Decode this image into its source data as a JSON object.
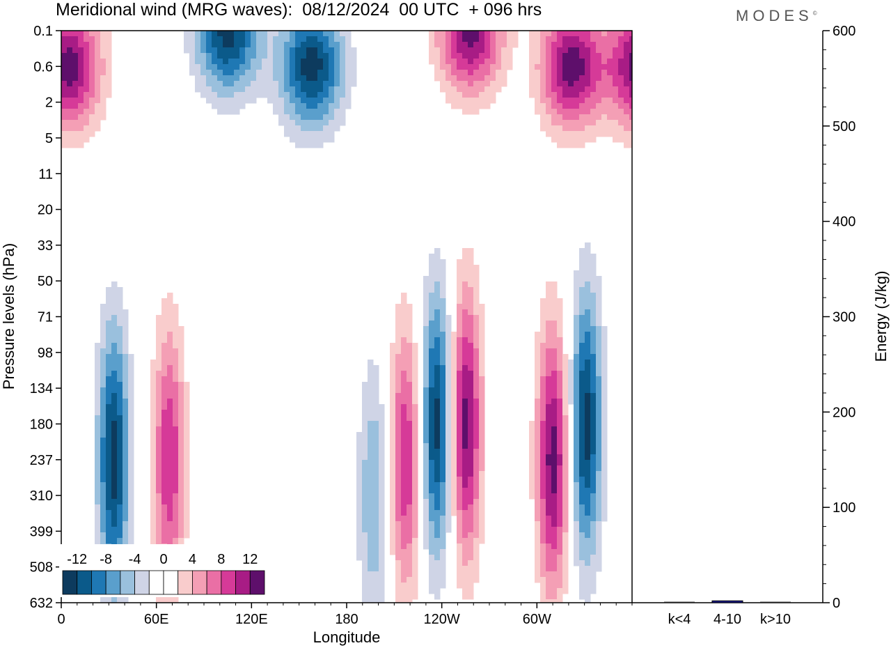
{
  "title": "Meridional wind (MRG waves):  08/12/2024  00 UTC  + 096 hrs",
  "logo": "MODES",
  "logo_mark": "©",
  "chart_data": [
    {
      "type": "heatmap",
      "title": "Meridional wind (MRG waves):  08/12/2024  00 UTC  + 096 hrs",
      "xlabel": "Longitude",
      "ylabel": "Pressure levels (hPa)",
      "x_ticks": [
        "0",
        "60E",
        "120E",
        "180",
        "120W",
        "60W"
      ],
      "y_ticks": [
        "0.1",
        "0.6",
        "2",
        "5",
        "11",
        "20",
        "33",
        "50",
        "71",
        "98",
        "134",
        "180",
        "237",
        "310",
        "399",
        "508",
        "632"
      ],
      "y_scale": "categorical-descending",
      "colorbar_labels": [
        "-12",
        "-8",
        "-4",
        "0",
        "4",
        "8",
        "12"
      ],
      "colorbar_colors": [
        "#0d3b5e",
        "#0b5a8a",
        "#1f78b4",
        "#5a9fcc",
        "#9ac0dd",
        "#cfd4e6",
        "#ffffff",
        "#ffffff",
        "#f9cccc",
        "#f49fb5",
        "#ea6fa5",
        "#d63a98",
        "#a81c85",
        "#5e0f6b"
      ],
      "features": [
        {
          "lon": 33,
          "p": "237",
          "sign": -1,
          "max": 13
        },
        {
          "lon": 68,
          "p": "237",
          "sign": 1,
          "max": 10
        },
        {
          "lon": 197,
          "p": "310",
          "sign": -1,
          "max": 6
        },
        {
          "lon": 217,
          "p": "237",
          "sign": 1,
          "max": 10
        },
        {
          "lon": 237,
          "p": "180",
          "sign": -1,
          "max": 13
        },
        {
          "lon": 255,
          "p": "180",
          "sign": 1,
          "max": 13
        },
        {
          "lon": 310,
          "p": "237",
          "sign": 1,
          "max": 13
        },
        {
          "lon": 331,
          "p": "180",
          "sign": -1,
          "max": 13
        },
        {
          "lon": 158,
          "p": "0.6",
          "sign": -1,
          "max": 13
        },
        {
          "lon": 105,
          "p": "0.1",
          "sign": -1,
          "max": 13
        },
        {
          "lon": 5,
          "p": "0.6",
          "sign": 1,
          "max": 13
        },
        {
          "lon": 258,
          "p": "0.1",
          "sign": 1,
          "max": 13
        },
        {
          "lon": 322,
          "p": "0.6",
          "sign": 1,
          "max": 13
        }
      ]
    },
    {
      "type": "bar",
      "ylabel": "Energy (J/kg)",
      "categories": [
        "k<4",
        "4-10",
        "k>10"
      ],
      "values": [
        0,
        2,
        0
      ],
      "ylim": [
        0,
        600
      ],
      "y_ticks": [
        "0",
        "100",
        "200",
        "300",
        "400",
        "500",
        "600"
      ],
      "bar_color": "#1a1a8c"
    }
  ]
}
